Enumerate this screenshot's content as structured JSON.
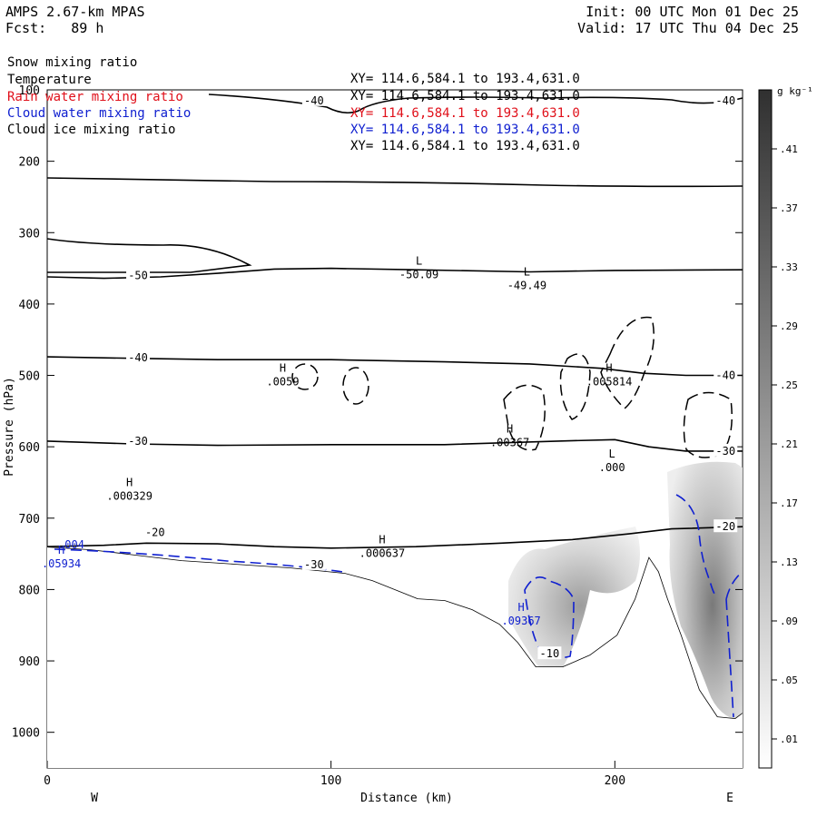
{
  "header": {
    "title": "AMPS 2.67-km MPAS",
    "forecast": "Fcst:   89 h",
    "init": "Init: 00 UTC Mon 01 Dec 25",
    "valid": "Valid: 17 UTC Thu 04 Dec 25"
  },
  "variables": [
    {
      "name": "Snow mixing ratio",
      "xy": "XY= 114.6,584.1 to 193.4,631.0",
      "color": "#000000"
    },
    {
      "name": "Temperature",
      "xy": "XY= 114.6,584.1 to 193.4,631.0",
      "color": "#000000"
    },
    {
      "name": "Rain water mixing ratio",
      "xy": "XY= 114.6,584.1 to 193.4,631.0",
      "color": "#e0101a"
    },
    {
      "name": "Cloud water mixing ratio",
      "xy": "XY= 114.6,584.1 to 193.4,631.0",
      "color": "#1020d0"
    },
    {
      "name": "Cloud ice mixing ratio",
      "xy": "XY= 114.6,584.1 to 193.4,631.0",
      "color": "#000000"
    }
  ],
  "chart_data": {
    "type": "heatmap",
    "xlabel": "Distance (km)",
    "ylabel": "Pressure (hPa)",
    "xlim": [
      0,
      245
    ],
    "ylim": [
      1050,
      100
    ],
    "x_ticks": [
      0,
      100,
      200
    ],
    "y_ticks": [
      100,
      200,
      300,
      400,
      500,
      600,
      700,
      800,
      900,
      1000
    ],
    "x_left_label": "W",
    "x_right_label": "E",
    "colorbar": {
      "units": "g kg⁻¹",
      "ticks": [
        ".01",
        ".05",
        ".09",
        ".13",
        ".17",
        ".21",
        ".25",
        ".29",
        ".33",
        ".37",
        ".41"
      ]
    },
    "isotherms": [
      {
        "value": -20,
        "points": [
          [
            0,
            740
          ],
          [
            20,
            738
          ],
          [
            35,
            735
          ],
          [
            60,
            736
          ],
          [
            80,
            740
          ],
          [
            100,
            742
          ],
          [
            130,
            740
          ],
          [
            160,
            735
          ],
          [
            185,
            730
          ],
          [
            205,
            722
          ],
          [
            220,
            715
          ],
          [
            245,
            712
          ]
        ]
      },
      {
        "value": -30,
        "points": [
          [
            0,
            592
          ],
          [
            30,
            596
          ],
          [
            60,
            598
          ],
          [
            100,
            597
          ],
          [
            140,
            597
          ],
          [
            180,
            592
          ],
          [
            200,
            590
          ],
          [
            212,
            600
          ],
          [
            225,
            606
          ],
          [
            245,
            606
          ]
        ]
      },
      {
        "value": -40,
        "points": [
          [
            0,
            474
          ],
          [
            30,
            476
          ],
          [
            60,
            478
          ],
          [
            100,
            478
          ],
          [
            140,
            481
          ],
          [
            170,
            484
          ],
          [
            195,
            490
          ],
          [
            210,
            497
          ],
          [
            225,
            500
          ],
          [
            245,
            500
          ]
        ]
      },
      {
        "value": -50,
        "points": [
          [
            0,
            362
          ],
          [
            20,
            364
          ],
          [
            40,
            362
          ],
          [
            60,
            357
          ],
          [
            80,
            351
          ],
          [
            100,
            350
          ],
          [
            130,
            352
          ],
          [
            170,
            355
          ],
          [
            200,
            353
          ],
          [
            245,
            352
          ]
        ]
      }
    ],
    "highs_lows": [
      {
        "type": "L",
        "value": "-50.09",
        "x": 131,
        "p": 345
      },
      {
        "type": "L",
        "value": "-49.49",
        "x": 169,
        "p": 360
      },
      {
        "type": "H",
        "value": ".0059",
        "x": 83,
        "p": 495
      },
      {
        "type": "H",
        "value": ".005814",
        "x": 198,
        "p": 495
      },
      {
        "type": "H",
        "value": ".00367",
        "x": 163,
        "p": 580
      },
      {
        "type": "L",
        "value": ".000",
        "x": 199,
        "p": 615
      },
      {
        "type": "H",
        "value": ".000329",
        "x": 29,
        "p": 655
      },
      {
        "type": "H",
        "value": ".000637",
        "x": 118,
        "p": 735
      },
      {
        "type": "H",
        "value": ".05934",
        "x": 5,
        "p": 750
      },
      {
        "type": "H",
        "value": ".09367",
        "x": 167,
        "p": 830
      }
    ],
    "blue_labels": [
      {
        "text": ".004",
        "x": 4,
        "p": 742
      }
    ],
    "contour_labels": [
      {
        "text": "-40",
        "x": 94,
        "p": 115
      },
      {
        "text": "-40",
        "x": 239,
        "p": 115
      },
      {
        "text": "-50",
        "x": 32,
        "p": 360
      },
      {
        "text": "-40",
        "x": 32,
        "p": 475
      },
      {
        "text": "-40",
        "x": 239,
        "p": 500
      },
      {
        "text": "-30",
        "x": 32,
        "p": 592
      },
      {
        "text": "-30",
        "x": 239,
        "p": 606
      },
      {
        "text": "-20",
        "x": 38,
        "p": 720
      },
      {
        "text": "-20",
        "x": 239,
        "p": 712
      },
      {
        "text": "-30",
        "x": 94,
        "p": 765
      },
      {
        "text": "-10",
        "x": 177,
        "p": 890
      }
    ],
    "colors": {
      "terrain_line": "#000000",
      "isotherm": "#000000",
      "cloud_ice": "#000000",
      "cloud_water": "#1020d0"
    }
  }
}
